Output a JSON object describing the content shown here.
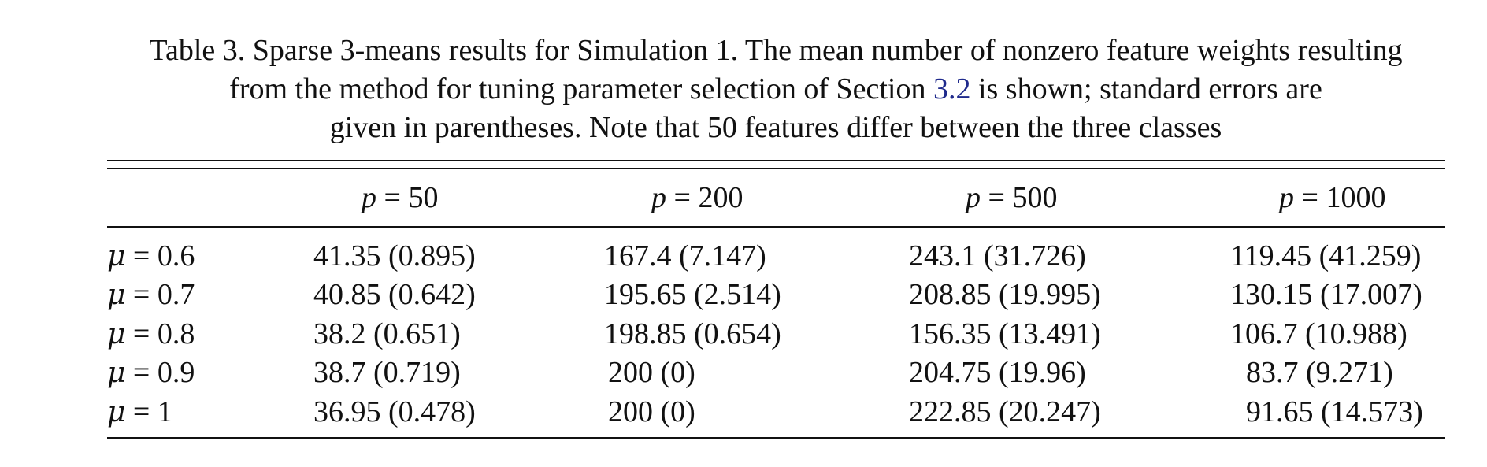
{
  "caption": {
    "line1": "Table 3.  Sparse 3-means results for Simulation 1. The mean number of nonzero feature weights resulting",
    "line2_before_ref": "from the method for tuning parameter selection of Section ",
    "line2_ref": "3.2",
    "line2_after_ref": " is shown; standard errors are",
    "line3": "given in parentheses. Note that 50 features differ between the three classes"
  },
  "table": {
    "header_symbol": "p",
    "columns": [
      "50",
      "200",
      "500",
      "1000"
    ],
    "row_symbol": "μ",
    "rows": [
      {
        "mu": "0.6",
        "cells": [
          "41.35 (0.895)",
          "167.4 (7.147)",
          "243.1 (31.726)",
          "119.45 (41.259)"
        ]
      },
      {
        "mu": "0.7",
        "cells": [
          "40.85 (0.642)",
          "195.65 (2.514)",
          "208.85 (19.995)",
          "130.15 (17.007)"
        ]
      },
      {
        "mu": "0.8",
        "cells": [
          "38.2 (0.651)",
          "198.85 (0.654)",
          "156.35 (13.491)",
          "106.7 (10.988)"
        ]
      },
      {
        "mu": "0.9",
        "cells": [
          "38.7 (0.719)",
          "200 (0)",
          "204.75 (19.96)",
          "83.7 (9.271)"
        ]
      },
      {
        "mu": "1",
        "cells": [
          "36.95 (0.478)",
          "200 (0)",
          "222.85 (20.247)",
          "91.65 (14.573)"
        ]
      }
    ]
  }
}
